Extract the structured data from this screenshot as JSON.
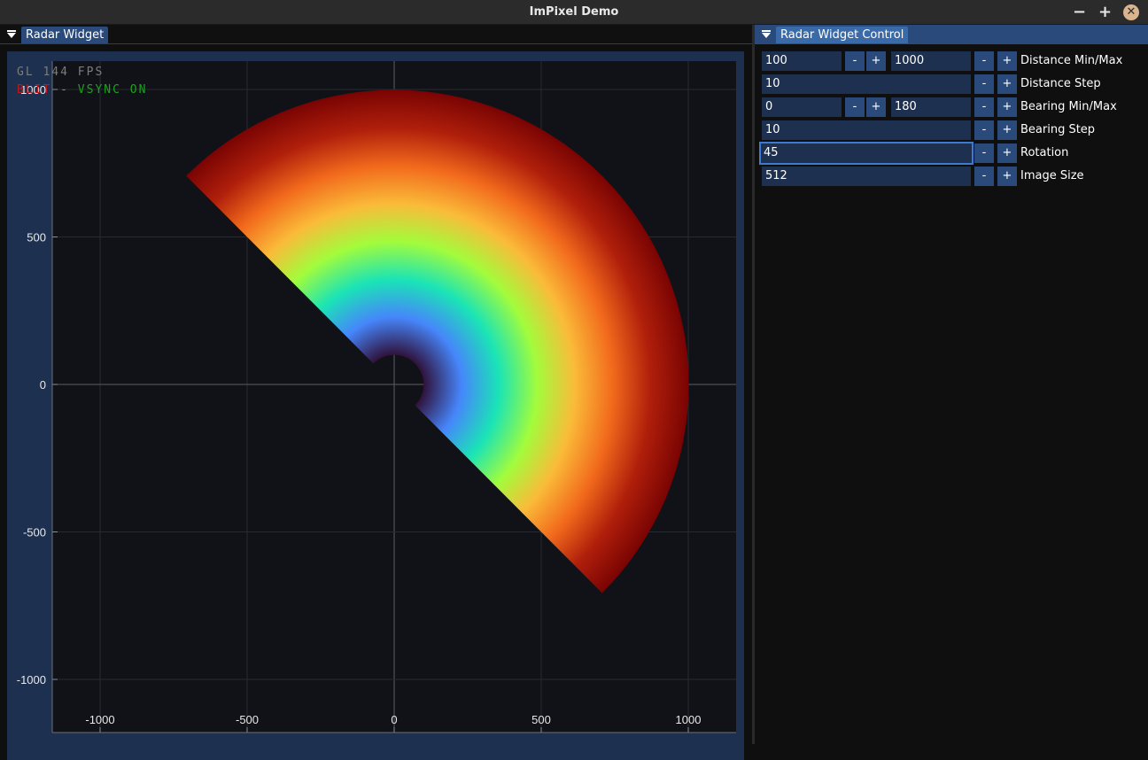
{
  "window": {
    "title": "ImPixel Demo",
    "minimize": "−",
    "maximize": "+",
    "close": "✕"
  },
  "left_panel": {
    "tab": "Radar Widget",
    "fps_overlay": "GL 144 FPS",
    "blit_label": "BLIT",
    "separator": "-",
    "vsync_label": "VSYNC ON"
  },
  "right_panel": {
    "tab": "Radar Widget Control",
    "rows": [
      {
        "label": "Distance Min/Max",
        "values": [
          "100",
          "1000"
        ]
      },
      {
        "label": "Distance Step",
        "values": [
          "10"
        ]
      },
      {
        "label": "Bearing Min/Max",
        "values": [
          "0",
          "180"
        ]
      },
      {
        "label": "Bearing Step",
        "values": [
          "10"
        ]
      },
      {
        "label": "Rotation",
        "values": [
          "45"
        ]
      },
      {
        "label": "Image Size",
        "values": [
          "512"
        ]
      }
    ],
    "minus": "-",
    "plus": "+"
  },
  "chart_data": {
    "type": "heatmap",
    "description_kind": "radar sector",
    "distance_range": [
      100,
      1000
    ],
    "bearing_range": [
      0,
      180
    ],
    "rotation": 45,
    "xlim": [
      -1165,
      1165
    ],
    "ylim": [
      -1100,
      1000
    ],
    "x_ticks": [
      -1000,
      -500,
      0,
      500,
      1000
    ],
    "y_ticks": [
      1000,
      500,
      0,
      -500,
      -1000
    ],
    "x_tick_labels": [
      "-1000",
      "-500",
      "0",
      "500",
      "1000"
    ],
    "y_tick_labels": [
      "1000",
      "500",
      "0",
      "-500",
      "-1000"
    ],
    "grid": true,
    "colormap": [
      "#30123b",
      "#4686fb",
      "#1ae4b6",
      "#a2fc3c",
      "#fabb39",
      "#f26a1c",
      "#b01f0b",
      "#7a0403"
    ]
  }
}
